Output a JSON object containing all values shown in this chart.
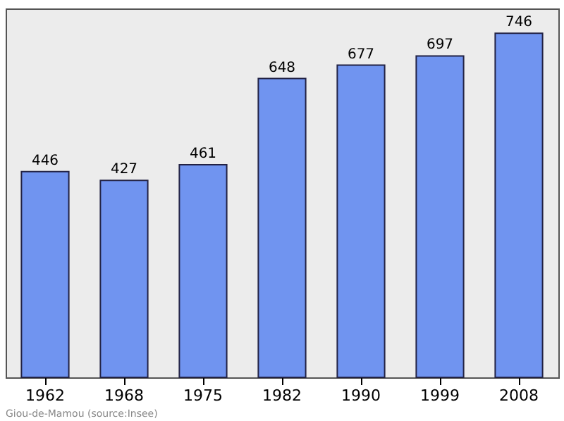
{
  "chart_data": {
    "type": "bar",
    "categories": [
      "1962",
      "1968",
      "1975",
      "1982",
      "1990",
      "1999",
      "2008"
    ],
    "values": [
      446,
      427,
      461,
      648,
      677,
      697,
      746
    ],
    "color": "#7094f0",
    "data_labels": true,
    "grid": false,
    "annotations": [
      "Giou-de-Mamou    (source:Insee)"
    ]
  }
}
